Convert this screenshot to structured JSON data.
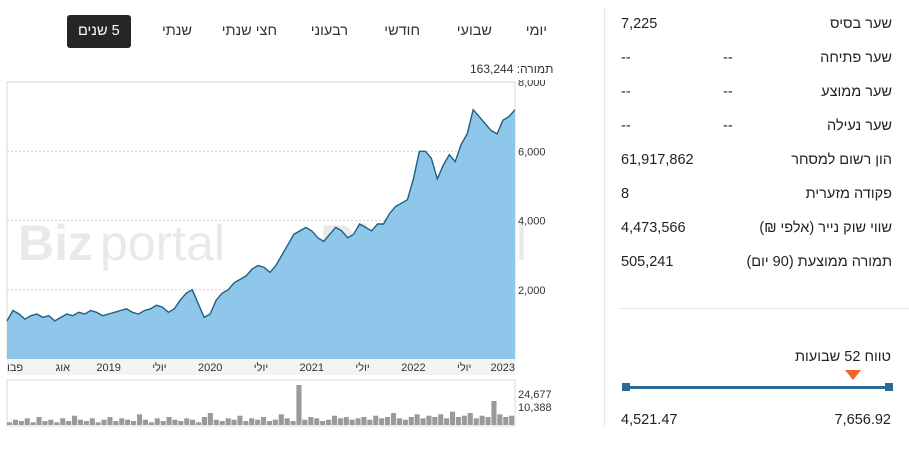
{
  "tabs": [
    {
      "label": "יומי",
      "active": false
    },
    {
      "label": "שבועי",
      "active": false
    },
    {
      "label": "חודשי",
      "active": false
    },
    {
      "label": "רבעוני",
      "active": false
    },
    {
      "label": "חצי שנתי",
      "active": false
    },
    {
      "label": "שנתי",
      "active": false
    },
    {
      "label": "5 שנים",
      "active": true
    }
  ],
  "volume_caption": "תמורה: 163,244",
  "stats": [
    {
      "label": "שער בסיס",
      "value": "7,225",
      "extra": ""
    },
    {
      "label": "שער פתיחה",
      "value": "--",
      "extra": "--"
    },
    {
      "label": "שער ממוצע",
      "value": "--",
      "extra": "--"
    },
    {
      "label": "שער נעילה",
      "value": "--",
      "extra": "--"
    },
    {
      "label": "הון רשום למסחר",
      "value": "61,917,862",
      "extra": ""
    },
    {
      "label": "פקודה מזערית",
      "value": "8",
      "extra": ""
    },
    {
      "label": "שווי שוק נייר (אלפי ₪)",
      "value": "4,473,566",
      "extra": ""
    },
    {
      "label": "תמורה ממוצעת (90 יום)",
      "value": "505,241",
      "extra": ""
    }
  ],
  "range": {
    "label": "טווח 52 שבועות",
    "low": "4,521.47",
    "high": "7,656.92",
    "low_value": 4521.47,
    "high_value": 7656.92,
    "current_value": 7225
  },
  "watermark": {
    "bold": "Biz",
    "light": "portal"
  },
  "colors": {
    "area_fill": "#8fc7ea",
    "line": "#1f5f85",
    "volume": "#9a9a9a",
    "tab_active": "#262626",
    "accent": "#f26522"
  },
  "chart_data": {
    "type": "area",
    "ylim": [
      0,
      8000
    ],
    "y_ticks": [
      {
        "label": "8,000",
        "value": 8000
      },
      {
        "label": "6,000",
        "value": 6000
      },
      {
        "label": "4,000",
        "value": 4000
      },
      {
        "label": "2,000",
        "value": 2000
      }
    ],
    "x_ticks": [
      {
        "label": "פבו",
        "t": 0.0
      },
      {
        "label": "אוג",
        "t": 0.11
      },
      {
        "label": "2019",
        "t": 0.2
      },
      {
        "label": "יולי",
        "t": 0.3
      },
      {
        "label": "2020",
        "t": 0.4
      },
      {
        "label": "יולי",
        "t": 0.5
      },
      {
        "label": "2021",
        "t": 0.6
      },
      {
        "label": "יולי",
        "t": 0.7
      },
      {
        "label": "2022",
        "t": 0.8
      },
      {
        "label": "יולי",
        "t": 0.9
      },
      {
        "label": "2023",
        "t": 1.0
      }
    ],
    "series": [
      {
        "values": [
          1100,
          1400,
          1300,
          1150,
          1250,
          1300,
          1200,
          1250,
          1100,
          1200,
          1300,
          1250,
          1350,
          1300,
          1400,
          1350,
          1250,
          1300,
          1350,
          1400,
          1450,
          1350,
          1300,
          1400,
          1450,
          1550,
          1500,
          1350,
          1450,
          1700,
          1900,
          2000,
          1600,
          1200,
          1300,
          1700,
          1900,
          2000,
          2200,
          2300,
          2400,
          2600,
          2700,
          2650,
          2500,
          2700,
          3000,
          3300,
          3600,
          3700,
          3800,
          3700,
          3500,
          3400,
          3600,
          3800,
          3700,
          3500,
          3600,
          3900,
          3800,
          3700,
          3900,
          3900,
          4200,
          4400,
          4500,
          4600,
          5200,
          6000,
          6000,
          5800,
          5200,
          5600,
          5900,
          5700,
          6200,
          6500,
          7200,
          7000,
          6800,
          6600,
          6500,
          6900,
          7000,
          7200
        ]
      }
    ],
    "volume": {
      "labels": [
        {
          "label": "24,677",
          "value": 24677
        },
        {
          "label": "10,388",
          "value": 10388
        }
      ],
      "values": [
        2,
        4,
        3,
        5,
        2,
        6,
        3,
        4,
        2,
        5,
        3,
        7,
        4,
        3,
        5,
        2,
        4,
        6,
        3,
        5,
        4,
        3,
        8,
        4,
        2,
        5,
        3,
        6,
        4,
        3,
        5,
        4,
        2,
        6,
        9,
        4,
        3,
        5,
        4,
        7,
        3,
        5,
        4,
        6,
        3,
        4,
        8,
        5,
        3,
        30,
        4,
        6,
        5,
        3,
        4,
        7,
        5,
        6,
        4,
        5,
        6,
        4,
        7,
        5,
        6,
        9,
        5,
        4,
        6,
        8,
        5,
        7,
        6,
        8,
        5,
        10,
        6,
        7,
        9,
        5,
        7,
        6,
        18,
        8,
        6,
        7
      ]
    }
  }
}
